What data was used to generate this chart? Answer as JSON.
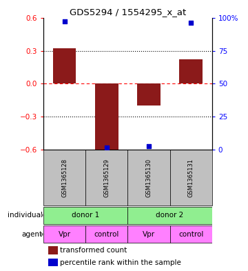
{
  "title": "GDS5294 / 1554295_x_at",
  "samples": [
    "GSM1365128",
    "GSM1365129",
    "GSM1365130",
    "GSM1365131"
  ],
  "bar_values": [
    0.32,
    -0.6,
    -0.2,
    0.22
  ],
  "percentile_values": [
    97,
    2,
    3,
    96
  ],
  "ylim_left": [
    -0.6,
    0.6
  ],
  "ylim_right": [
    0,
    100
  ],
  "bar_color": "#8B1A1A",
  "dot_color": "#0000CD",
  "agent_labels": [
    "Vpr",
    "control",
    "Vpr",
    "control"
  ],
  "individual_groups": [
    [
      "donor 1",
      0,
      1
    ],
    [
      "donor 2",
      2,
      3
    ]
  ],
  "individual_color": "#90EE90",
  "agent_color": "#FF80FF",
  "sample_bg_color": "#C0C0C0",
  "left_yticks": [
    -0.6,
    -0.3,
    0.0,
    0.3,
    0.6
  ],
  "right_yticks": [
    0,
    25,
    50,
    75,
    100
  ],
  "hline_dotted": [
    0.3,
    -0.3
  ],
  "hline_dashed": 0.0
}
